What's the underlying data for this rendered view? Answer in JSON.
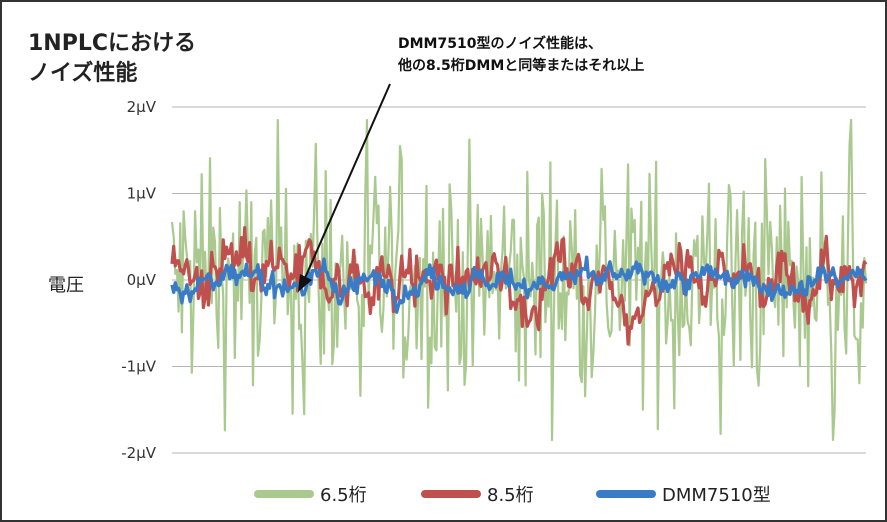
{
  "chart_data": {
    "type": "line",
    "title_line1": "1NPLCにおける",
    "title_line2": "ノイズ性能",
    "annotation_line1": "DMM7510型のノイズ性能は、",
    "annotation_line2": "他の8.5桁DMMと同等またはそれ以上",
    "ylabel": "電圧",
    "xlabel": "",
    "y_ticks": [
      "2µV",
      "1µV",
      "0µV",
      "-1µV",
      "-2µV"
    ],
    "y_tick_values": [
      2,
      1,
      0,
      -1,
      -2
    ],
    "ylim": [
      -2,
      2
    ],
    "grid": true,
    "legend_position": "bottom",
    "series": [
      {
        "name": "6.5桁",
        "color": "#a9c98e",
        "amplitude_uV": 1.2
      },
      {
        "name": "8.5桁",
        "color": "#c0504d",
        "amplitude_uV": 0.3
      },
      {
        "name": "DMM7510型",
        "color": "#3a7bc8",
        "amplitude_uV": 0.12
      }
    ]
  }
}
